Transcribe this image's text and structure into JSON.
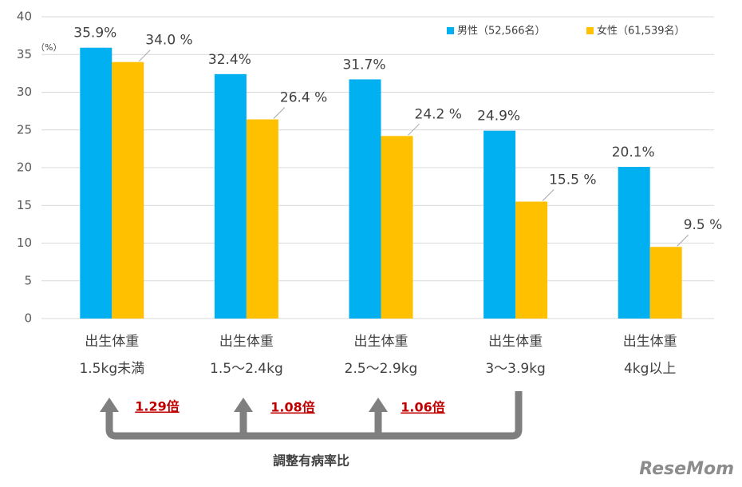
{
  "chart_data": {
    "type": "bar",
    "y_unit": "（%）",
    "categories": [
      [
        "出生体重",
        "1.5kg未満"
      ],
      [
        "出生体重",
        "1.5～2.4kg"
      ],
      [
        "出生体重",
        "2.5～2.9kg"
      ],
      [
        "出生体重",
        "3～3.9kg"
      ],
      [
        "出生体重",
        "4kg以上"
      ]
    ],
    "series": [
      {
        "name": "男性（52,566名）",
        "color": "#00b0f0",
        "values": [
          35.9,
          32.4,
          31.7,
          24.9,
          20.1
        ],
        "value_labels": [
          "35.9%",
          "32.4%",
          "31.7%",
          "24.9%",
          "20.1%"
        ]
      },
      {
        "name": "女性（61,539名）",
        "color": "#ffc000",
        "values": [
          34.0,
          26.4,
          24.2,
          15.5,
          9.5
        ],
        "value_labels": [
          "34.0 %",
          "26.4 %",
          "24.2 %",
          "15.5 %",
          "9.5 %"
        ]
      }
    ],
    "ylim": [
      0,
      40
    ],
    "yticks": [
      0,
      5,
      10,
      15,
      20,
      25,
      30,
      35,
      40
    ],
    "grid": true,
    "annotations": {
      "ratios": [
        "1.29倍",
        "1.08倍",
        "1.06倍"
      ],
      "ratio_title": "調整有病率比"
    },
    "watermark": "ReseMom"
  }
}
